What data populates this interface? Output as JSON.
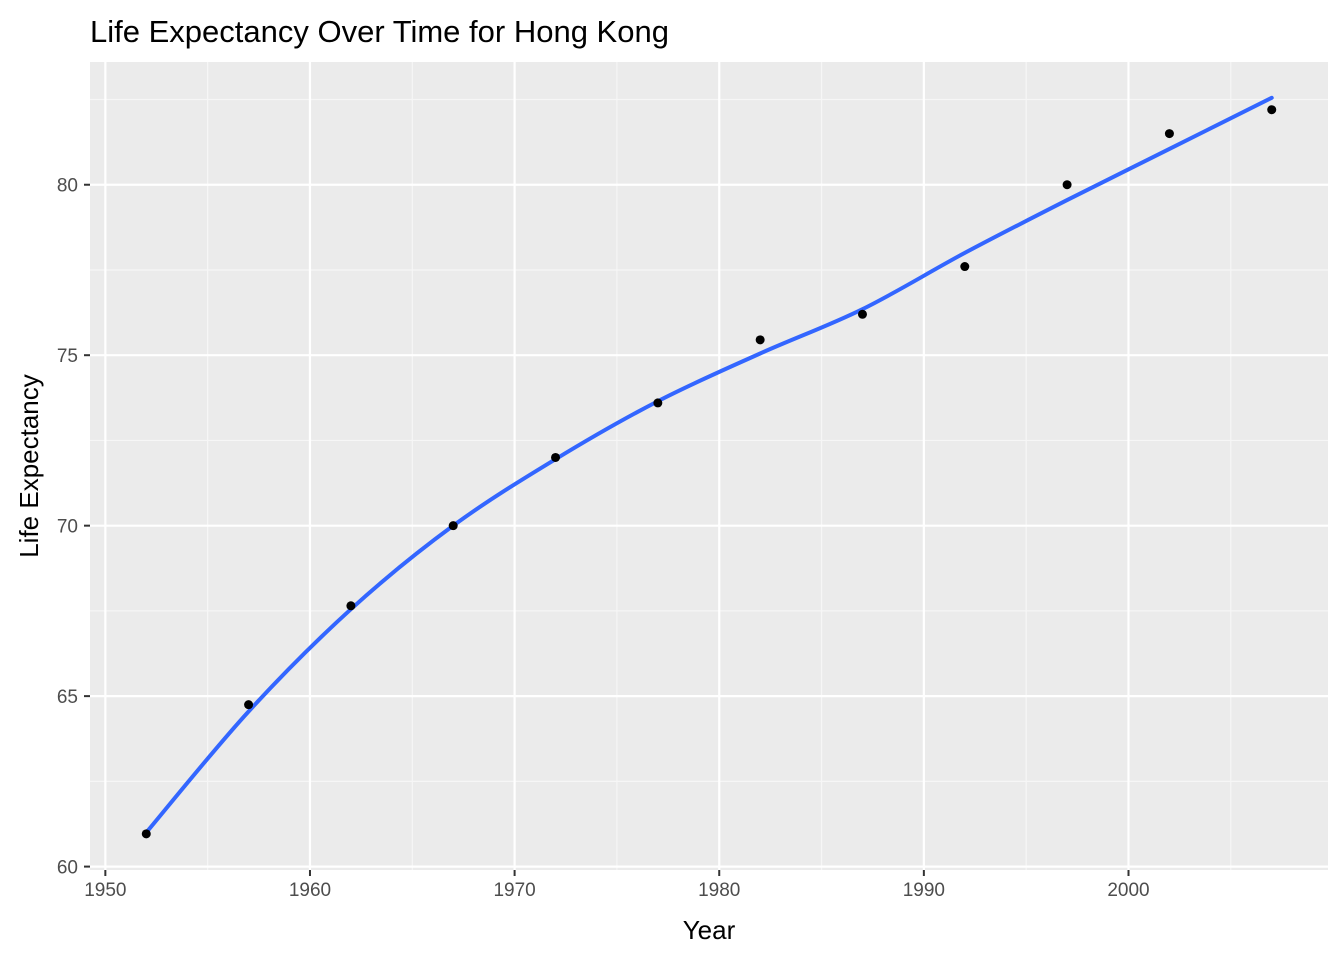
{
  "chart_data": {
    "type": "scatter",
    "title": "Life Expectancy Over Time for Hong Kong",
    "xlabel": "Year",
    "ylabel": "Life Expectancy",
    "xlim": [
      1949.25,
      2009.75
    ],
    "ylim": [
      59.9,
      83.6
    ],
    "x_ticks": [
      1950,
      1960,
      1970,
      1980,
      1990,
      2000
    ],
    "y_ticks": [
      60,
      65,
      70,
      75,
      80
    ],
    "grid": true,
    "legend": "none",
    "series": [
      {
        "points": [
          {
            "x": 1952,
            "y": 60.96
          },
          {
            "x": 1957,
            "y": 64.75
          },
          {
            "x": 1962,
            "y": 67.65
          },
          {
            "x": 1967,
            "y": 70.0
          },
          {
            "x": 1972,
            "y": 72.0
          },
          {
            "x": 1977,
            "y": 73.6
          },
          {
            "x": 1982,
            "y": 75.45
          },
          {
            "x": 1987,
            "y": 76.2
          },
          {
            "x": 1992,
            "y": 77.6
          },
          {
            "x": 1997,
            "y": 80.0
          },
          {
            "x": 2002,
            "y": 81.5
          },
          {
            "x": 2007,
            "y": 82.2
          }
        ]
      }
    ],
    "trend_line": {
      "type": "loess",
      "points": [
        {
          "x": 1952,
          "y": 61.0
        },
        {
          "x": 1957,
          "y": 64.55
        },
        {
          "x": 1962,
          "y": 67.55
        },
        {
          "x": 1967,
          "y": 70.0
        },
        {
          "x": 1972,
          "y": 71.95
        },
        {
          "x": 1977,
          "y": 73.65
        },
        {
          "x": 1982,
          "y": 75.05
        },
        {
          "x": 1987,
          "y": 76.35
        },
        {
          "x": 1992,
          "y": 78.0
        },
        {
          "x": 1997,
          "y": 79.55
        },
        {
          "x": 2002,
          "y": 81.05
        },
        {
          "x": 2007,
          "y": 82.55
        }
      ]
    },
    "colors": {
      "panel_background": "#ebebeb",
      "grid_major": "#ffffff",
      "grid_minor": "#f6f6f6",
      "point": "#000000",
      "trend_line": "#3366ff",
      "tick_label": "#4d4d4d",
      "tick_mark": "#333333"
    }
  }
}
